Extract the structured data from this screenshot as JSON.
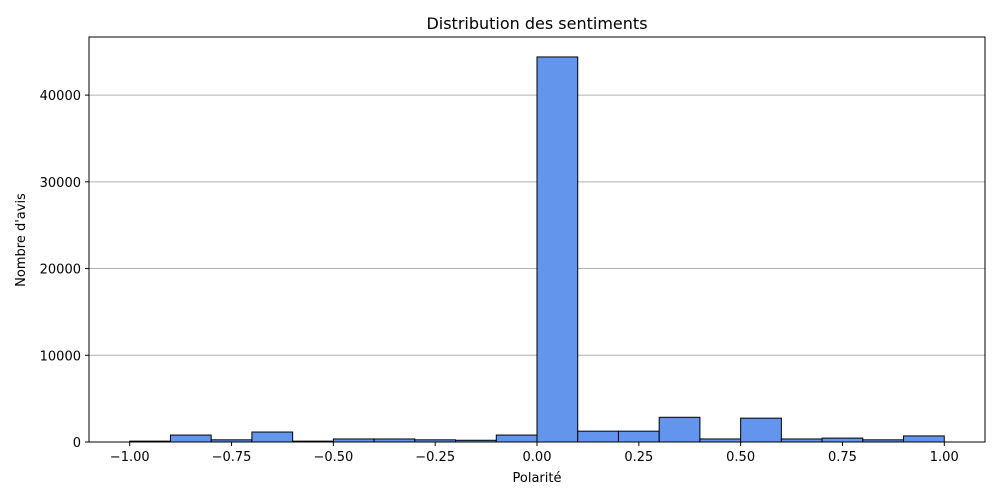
{
  "chart_data": {
    "type": "bar",
    "subtype": "histogram",
    "title": "Distribution des sentiments",
    "xlabel": "Polarité",
    "ylabel": "Nombre d'avis",
    "xlim": [
      -1.1,
      1.1
    ],
    "ylim": [
      0,
      46700
    ],
    "grid": {
      "x": false,
      "y": true
    },
    "legend": "none",
    "bar_color": "#6495ED",
    "edge_color": "#000000",
    "bin_edges": [
      -1.0,
      -0.9,
      -0.8,
      -0.7,
      -0.6,
      -0.5,
      -0.4,
      -0.3,
      -0.2,
      -0.1,
      0.0,
      0.1,
      0.2,
      0.3,
      0.4,
      0.5,
      0.6,
      0.7,
      0.8,
      0.9,
      1.0
    ],
    "values": [
      100,
      800,
      250,
      1150,
      100,
      350,
      350,
      250,
      200,
      800,
      44400,
      1250,
      1250,
      2850,
      350,
      2750,
      350,
      450,
      250,
      700
    ],
    "x_ticks": [
      {
        "value": -1.0,
        "label": "−1.00"
      },
      {
        "value": -0.75,
        "label": "−0.75"
      },
      {
        "value": -0.5,
        "label": "−0.50"
      },
      {
        "value": -0.25,
        "label": "−0.25"
      },
      {
        "value": 0.0,
        "label": "0.00"
      },
      {
        "value": 0.25,
        "label": "0.25"
      },
      {
        "value": 0.5,
        "label": "0.50"
      },
      {
        "value": 0.75,
        "label": "0.75"
      },
      {
        "value": 1.0,
        "label": "1.00"
      }
    ],
    "y_ticks": [
      {
        "value": 0,
        "label": "0"
      },
      {
        "value": 10000,
        "label": "10000"
      },
      {
        "value": 20000,
        "label": "20000"
      },
      {
        "value": 30000,
        "label": "30000"
      },
      {
        "value": 40000,
        "label": "40000"
      }
    ]
  }
}
